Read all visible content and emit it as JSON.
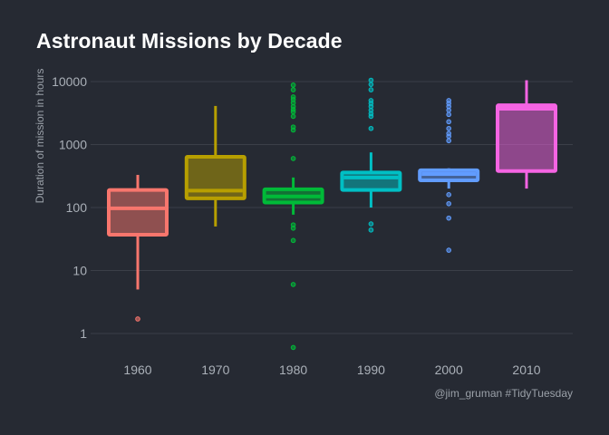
{
  "chart_data": {
    "type": "boxplot",
    "title": "Astronaut Missions by Decade",
    "ylabel": "Duration of mission in hours",
    "xlabel": "",
    "y_scale": "log10",
    "ylim": [
      0.5,
      16000
    ],
    "y_ticks": [
      1,
      10,
      100,
      1000,
      10000
    ],
    "y_tick_labels": [
      "1",
      "10",
      "100",
      "1000",
      "10000"
    ],
    "grid": true,
    "legend": "none",
    "caption": "@jim_gruman #TidyTuesday",
    "categories": [
      "1960",
      "1970",
      "1980",
      "1990",
      "2000",
      "2010"
    ],
    "series": [
      {
        "category": "1960",
        "color": "#f8766d",
        "whisker_low": 5,
        "q1": 37,
        "median": 97,
        "q3": 190,
        "whisker_high": 330,
        "outliers": [
          1.7
        ]
      },
      {
        "category": "1970",
        "color": "#b79f00",
        "whisker_low": 50,
        "q1": 140,
        "median": 185,
        "q3": 640,
        "whisker_high": 4100,
        "outliers": []
      },
      {
        "category": "1980",
        "color": "#00ba38",
        "whisker_low": 77,
        "q1": 120,
        "median": 150,
        "q3": 195,
        "whisker_high": 300,
        "outliers": [
          0.6,
          6,
          30,
          47,
          53,
          600,
          1700,
          1900,
          2800,
          3300,
          3600,
          4000,
          4600,
          5200,
          5700,
          7400,
          8800
        ]
      },
      {
        "category": "1990",
        "color": "#00bfc4",
        "whisker_low": 100,
        "q1": 190,
        "median": 300,
        "q3": 360,
        "whisker_high": 750,
        "outliers": [
          44,
          55,
          1800,
          2800,
          3100,
          3500,
          4000,
          4500,
          5000,
          7400,
          9000,
          10500
        ]
      },
      {
        "category": "2000",
        "color": "#619cff",
        "whisker_low": 200,
        "q1": 270,
        "median": 340,
        "q3": 390,
        "whisker_high": 420,
        "outliers": [
          21,
          68,
          115,
          160,
          1150,
          1350,
          1500,
          1800,
          2300,
          3000,
          3500,
          4000,
          4500,
          5000
        ]
      },
      {
        "category": "2010",
        "color": "#f564e3",
        "whisker_low": 200,
        "q1": 380,
        "median": 3700,
        "q3": 4200,
        "whisker_high": 10500,
        "outliers": []
      }
    ]
  }
}
